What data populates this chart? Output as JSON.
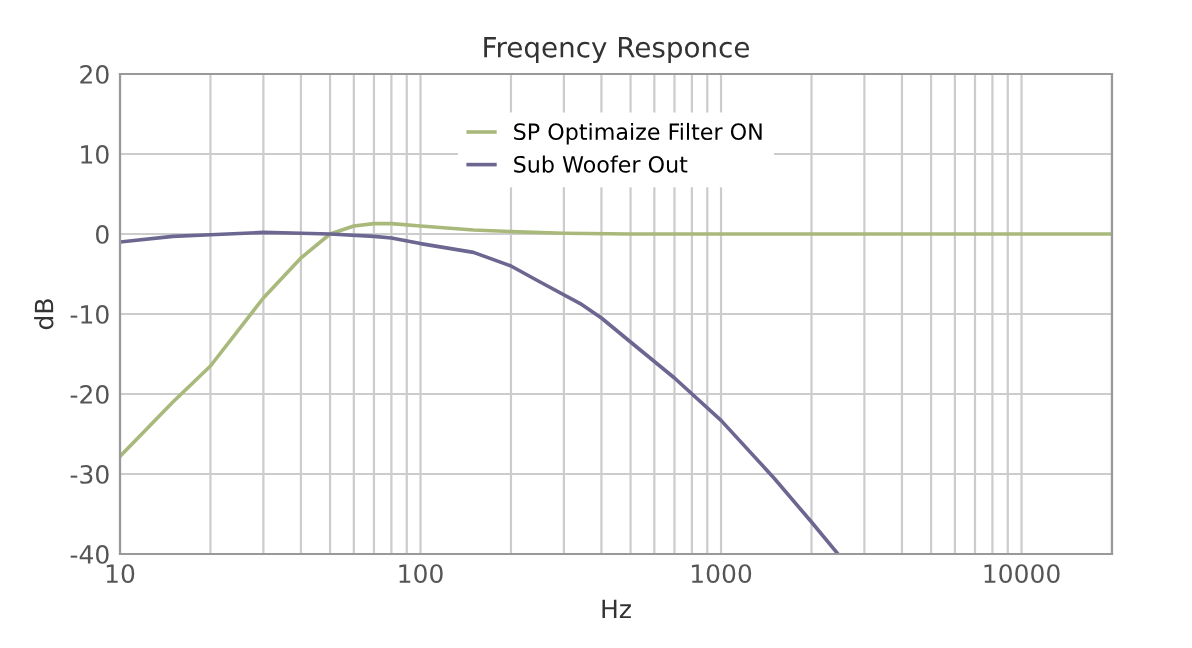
{
  "chart_data": {
    "type": "line",
    "title": "Freqency Responce",
    "xlabel": "Hz",
    "ylabel": "dB",
    "log": "x",
    "xlim": [
      10,
      20000
    ],
    "xticks": [
      10,
      100,
      1000,
      10000
    ],
    "ylim": [
      -40,
      20
    ],
    "yticks": [
      -40,
      -30,
      -20,
      -10,
      0,
      10,
      20
    ],
    "grid": true,
    "legend": "top",
    "marker": "none",
    "line_style": "solid",
    "series": [
      {
        "name": "SP Optimaize Filter ON",
        "color": "#a9b97c",
        "x": [
          10,
          15,
          20,
          30,
          40,
          50,
          60,
          70,
          80,
          100,
          150,
          200,
          300,
          500,
          1000,
          5000,
          20000
        ],
        "values": [
          -27.8,
          -21,
          -16.5,
          -8,
          -3,
          0,
          1,
          1.3,
          1.3,
          1,
          0.5,
          0.3,
          0.1,
          0,
          0,
          0,
          0
        ]
      },
      {
        "name": "Sub Woofer Out",
        "color": "#6b6791",
        "x": [
          10,
          15,
          20,
          30,
          40,
          50,
          70,
          80,
          100,
          150,
          200,
          250,
          340,
          400,
          500,
          700,
          1000,
          1500,
          2000,
          2450
        ],
        "values": [
          -1,
          -0.3,
          -0.1,
          0.2,
          0.1,
          0,
          -0.3,
          -0.5,
          -1.2,
          -2.3,
          -4,
          -6,
          -8.7,
          -10.5,
          -13.5,
          -18,
          -23.3,
          -30.5,
          -36,
          -40
        ]
      }
    ]
  }
}
